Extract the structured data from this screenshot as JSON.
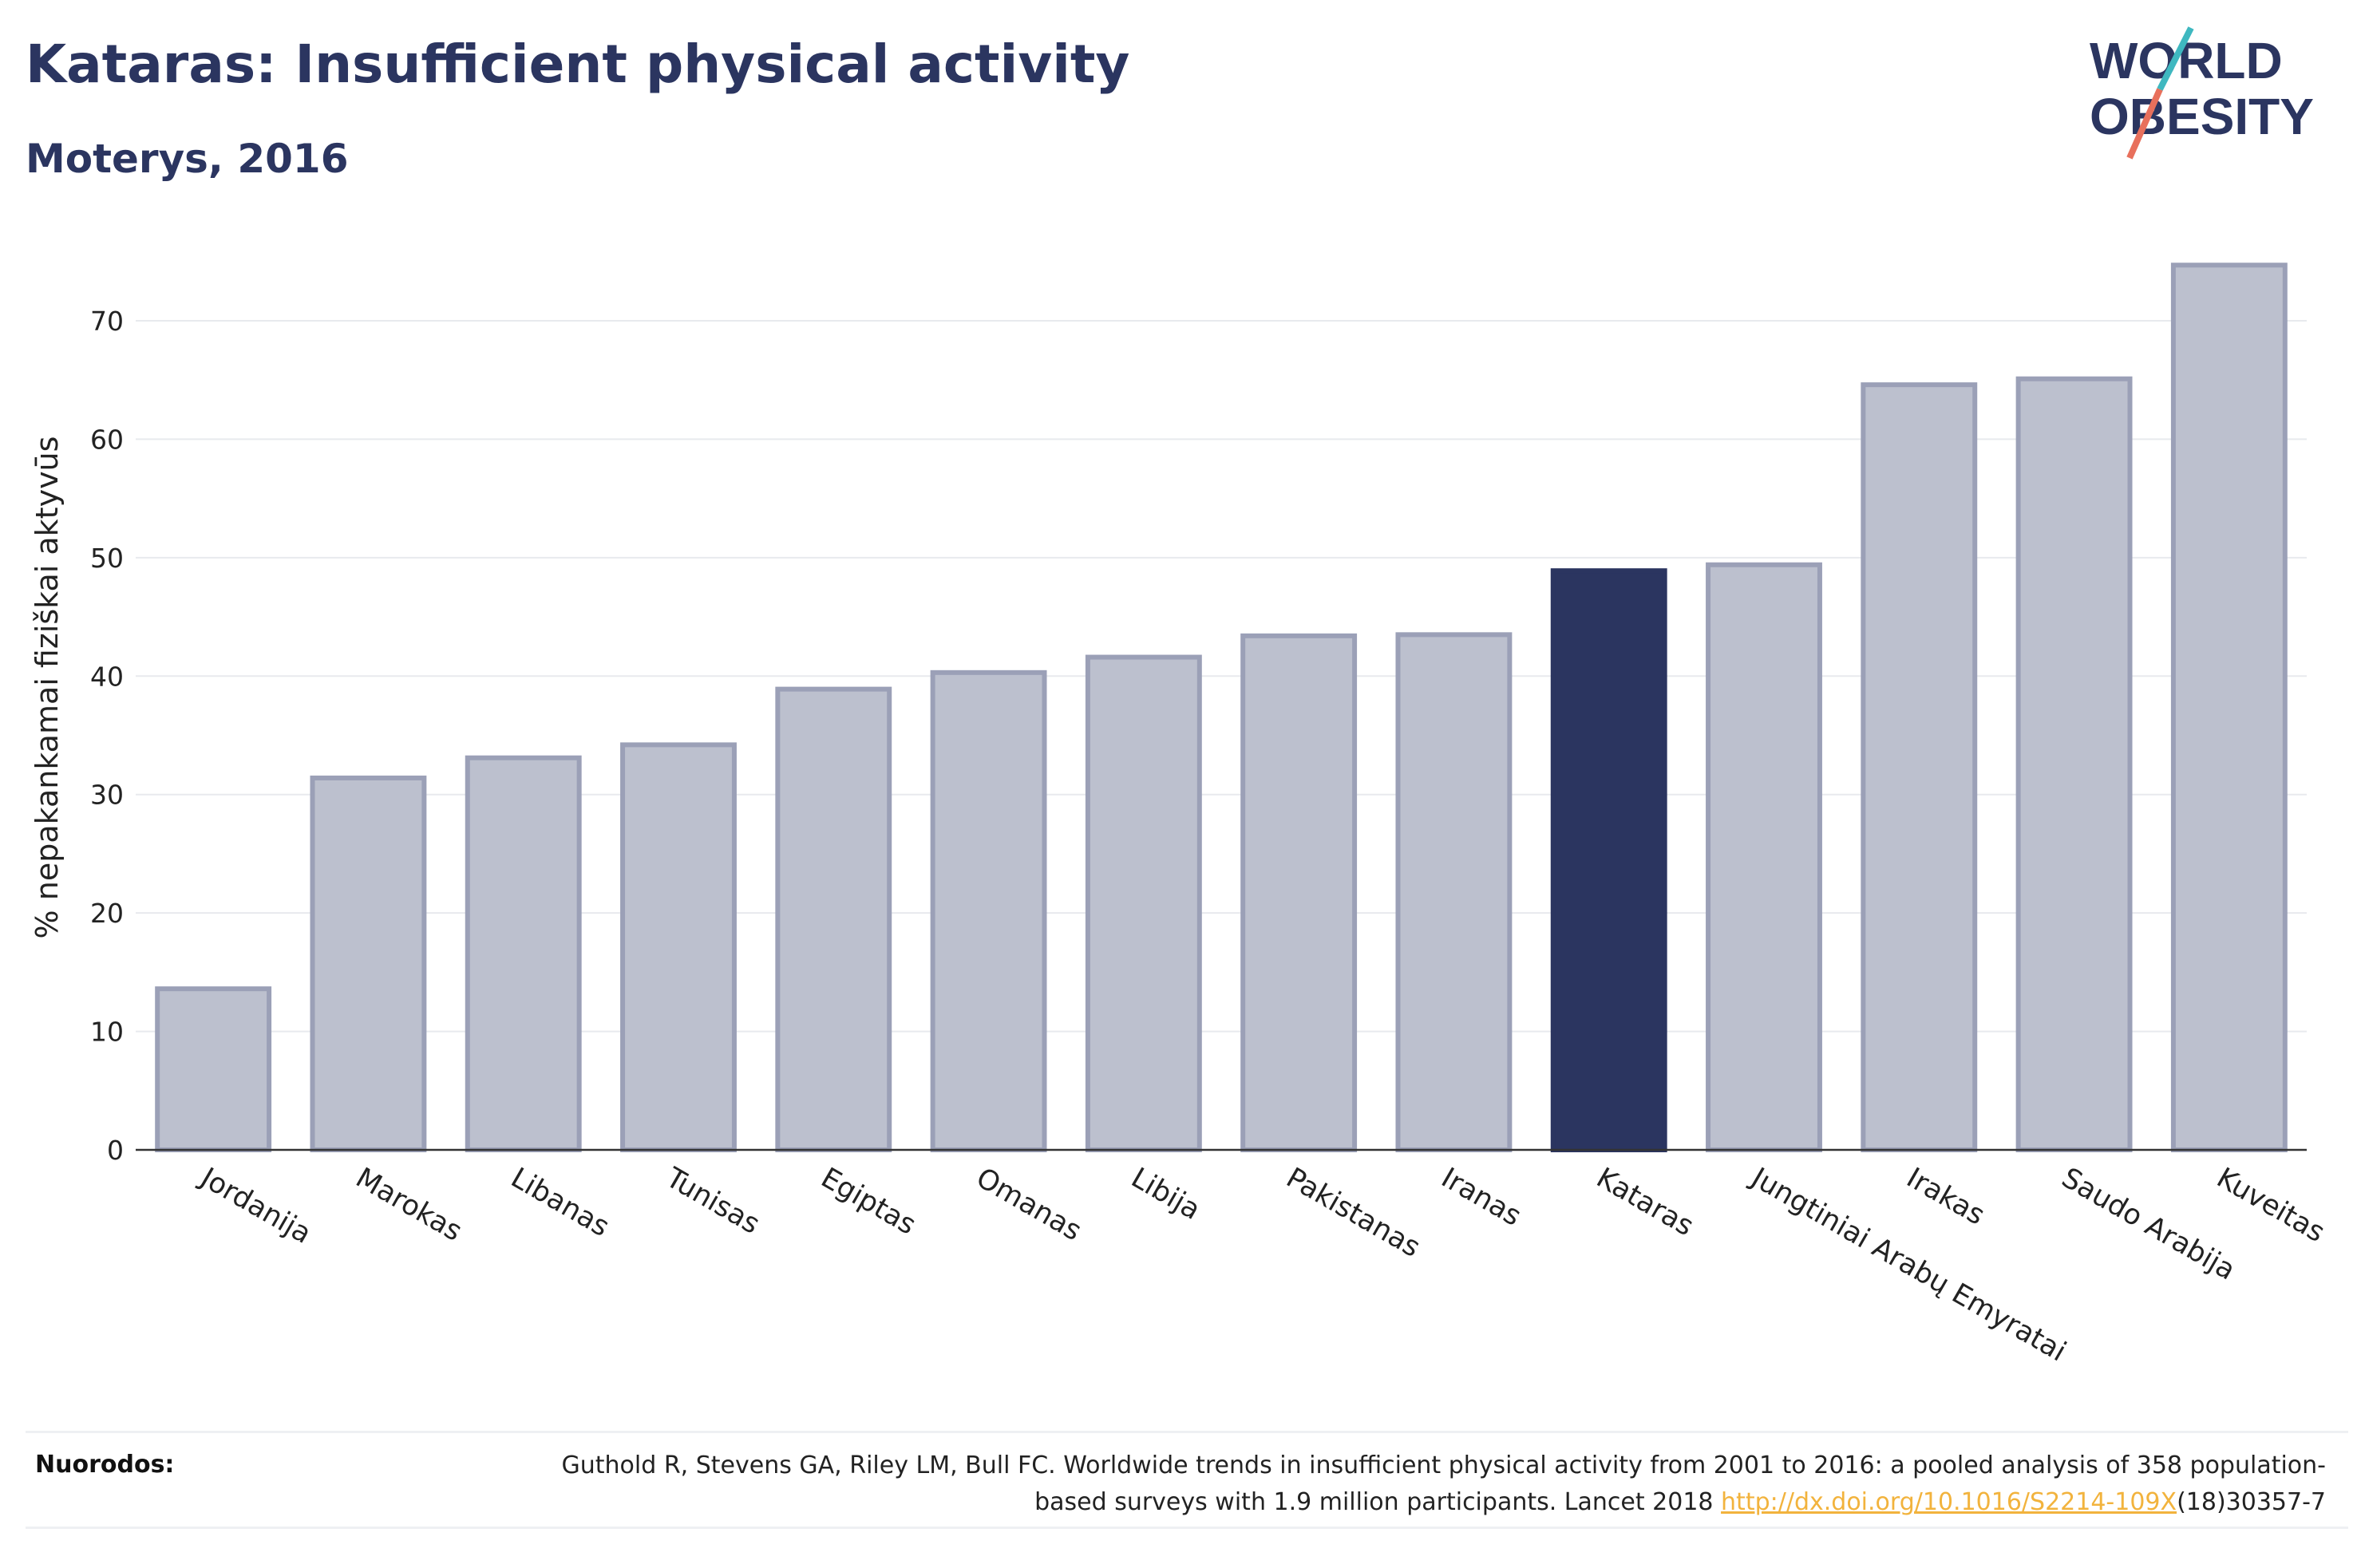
{
  "header": {
    "title": "Kataras: Insufficient physical activity",
    "subtitle": "Moterys, 2016"
  },
  "logo": {
    "line1": "WORLD",
    "line2": "OBESITY",
    "slash_colors": [
      "#3fb8c0",
      "#e8705c"
    ]
  },
  "colors": {
    "highlight_bar": "#2b3560",
    "other_bar_fill": "#bcc0ce",
    "other_bar_stroke": "#9ba0b7",
    "text": "#2b3560",
    "link": "#f2b33d"
  },
  "chart_data": {
    "type": "bar",
    "ylabel": "% nepakankamai fiziškai aktyvūs",
    "ylim": [
      0,
      75
    ],
    "yticks": [
      0,
      10,
      20,
      30,
      40,
      50,
      60,
      70
    ],
    "grid": true,
    "highlight": "Kataras",
    "categories": [
      "Jordanija",
      "Marokas",
      "Libanas",
      "Tunisas",
      "Egiptas",
      "Omanas",
      "Libija",
      "Pakistanas",
      "Iranas",
      "Kataras",
      "Jungtiniai Arabų Emyratai",
      "Irakas",
      "Saudo Arabija",
      "Kuveitas"
    ],
    "values": [
      13.6,
      31.4,
      33.1,
      34.2,
      38.9,
      40.3,
      41.6,
      43.4,
      43.5,
      48.9,
      49.4,
      64.6,
      65.1,
      74.7
    ]
  },
  "references": {
    "label": "Nuorodos:",
    "text_before": "Guthold R, Stevens GA, Riley LM, Bull FC. Worldwide trends in insufficient physical activity from 2001 to 2016: a pooled analysis of 358 population-based surveys with 1.9 million participants. Lancet 2018 ",
    "link": "http://dx.doi.org/10.1016/S2214-109X",
    "text_after": "(18)30357-7"
  }
}
